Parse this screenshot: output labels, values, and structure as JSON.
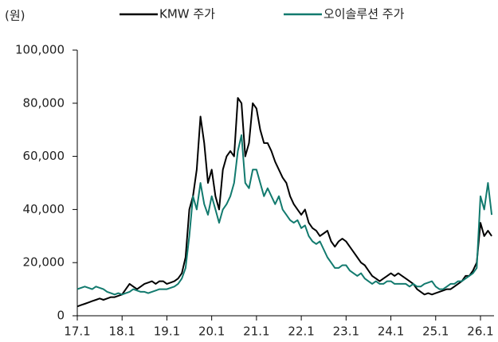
{
  "chart_data": {
    "type": "line",
    "y_unit": "(원)",
    "categories": [
      "17.1",
      null,
      null,
      null,
      null,
      null,
      null,
      null,
      null,
      null,
      null,
      null,
      "18.1",
      null,
      null,
      null,
      null,
      null,
      null,
      null,
      null,
      null,
      null,
      null,
      "19.1",
      null,
      null,
      null,
      null,
      null,
      null,
      null,
      null,
      null,
      null,
      null,
      "20.1",
      null,
      null,
      null,
      null,
      null,
      null,
      null,
      null,
      null,
      null,
      null,
      "21.1",
      null,
      null,
      null,
      null,
      null,
      null,
      null,
      null,
      null,
      null,
      null,
      "22.1",
      null,
      null,
      null,
      null,
      null,
      null,
      null,
      null,
      null,
      null,
      null,
      "23.1",
      null,
      null,
      null,
      null,
      null,
      null,
      null,
      null,
      null,
      null,
      null,
      "24.1",
      null,
      null,
      null,
      null,
      null,
      null,
      null,
      null,
      null,
      null,
      null,
      "25.1",
      null,
      null,
      null,
      null,
      null,
      null,
      null,
      null,
      null,
      null,
      null,
      "26.1",
      null,
      null,
      null
    ],
    "series": [
      {
        "name": "KMW 주가",
        "color": "#000000",
        "values": [
          3500,
          4000,
          4500,
          5000,
          5500,
          6000,
          6500,
          6000,
          6500,
          7000,
          7000,
          7500,
          8000,
          10000,
          12000,
          11000,
          10000,
          11000,
          12000,
          12500,
          13000,
          12000,
          13000,
          13000,
          12000,
          12500,
          13000,
          14000,
          16000,
          22000,
          40000,
          45000,
          55000,
          75000,
          65000,
          50000,
          55000,
          45000,
          40000,
          55000,
          60000,
          62000,
          60000,
          82000,
          80000,
          60000,
          65000,
          80000,
          78000,
          70000,
          65000,
          65000,
          62000,
          58000,
          55000,
          52000,
          50000,
          45000,
          42000,
          40000,
          38000,
          40000,
          35000,
          33000,
          32000,
          30000,
          31000,
          32000,
          28000,
          26000,
          28000,
          29000,
          28000,
          26000,
          24000,
          22000,
          20000,
          19000,
          17000,
          15000,
          14000,
          13000,
          14000,
          15000,
          16000,
          15000,
          16000,
          15000,
          14000,
          13000,
          12000,
          10000,
          9000,
          8000,
          8500,
          8000,
          8500,
          9000,
          9500,
          10000,
          10000,
          11000,
          12000,
          13000,
          15000,
          15000,
          17000,
          20000,
          35000,
          30000,
          32000,
          30000
        ]
      },
      {
        "name": "오이솔루션 주가",
        "color": "#127a6e",
        "values": [
          10000,
          10500,
          11000,
          10500,
          10000,
          11000,
          10500,
          10000,
          9000,
          8500,
          8000,
          8500,
          8000,
          8500,
          9000,
          10000,
          9500,
          9000,
          9000,
          8500,
          9000,
          9500,
          10000,
          10000,
          10000,
          10500,
          11000,
          12000,
          14000,
          18000,
          30000,
          45000,
          40000,
          50000,
          42000,
          38000,
          45000,
          40000,
          35000,
          40000,
          42000,
          45000,
          50000,
          62000,
          68000,
          50000,
          48000,
          55000,
          55000,
          50000,
          45000,
          48000,
          45000,
          42000,
          45000,
          40000,
          38000,
          36000,
          35000,
          36000,
          33000,
          34000,
          30000,
          28000,
          27000,
          28000,
          25000,
          22000,
          20000,
          18000,
          18000,
          19000,
          19000,
          17000,
          16000,
          15000,
          16000,
          14000,
          13000,
          12000,
          13000,
          12000,
          12000,
          13000,
          13000,
          12000,
          12000,
          12000,
          12000,
          11000,
          12000,
          11000,
          11000,
          12000,
          12500,
          13000,
          11000,
          10000,
          10000,
          11000,
          12000,
          12000,
          13000,
          13000,
          14000,
          15000,
          16000,
          18000,
          45000,
          40000,
          50000,
          38000
        ]
      }
    ],
    "ylim": [
      0,
      100000
    ],
    "yticks": [
      0,
      {
        "value": 20000,
        "label": "20,000"
      },
      {
        "value": 40000,
        "label": "40,000"
      },
      {
        "value": 60000,
        "label": "60,000"
      },
      {
        "value": 80000,
        "label": "80,000"
      },
      {
        "value": 100000,
        "label": "100,000"
      }
    ],
    "grid": false
  }
}
